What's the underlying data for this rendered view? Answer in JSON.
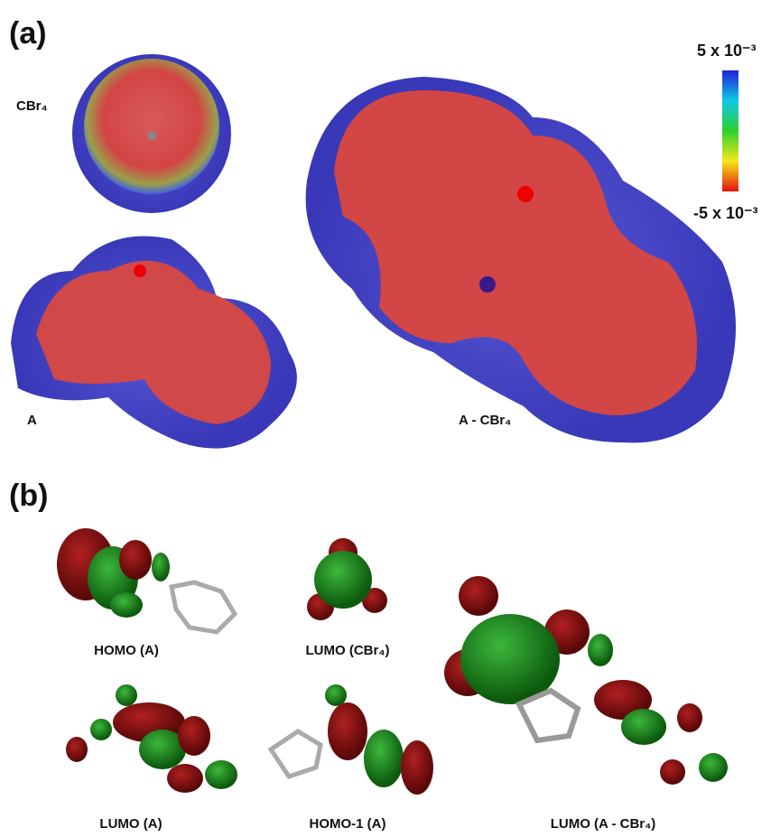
{
  "panel_a": {
    "label": "(a)",
    "molecules": [
      "CBr₄",
      "A",
      "A - CBr₄"
    ],
    "colorbar": {
      "max_label": "5 x 10⁻³",
      "min_label": "-5 x 10⁻³"
    }
  },
  "panel_b": {
    "label": "(b)",
    "orbitals": [
      "HOMO (A)",
      "LUMO (CBr₄)",
      "LUMO (A)",
      "HOMO-1 (A)",
      "LUMO (A - CBr₄)"
    ]
  }
}
